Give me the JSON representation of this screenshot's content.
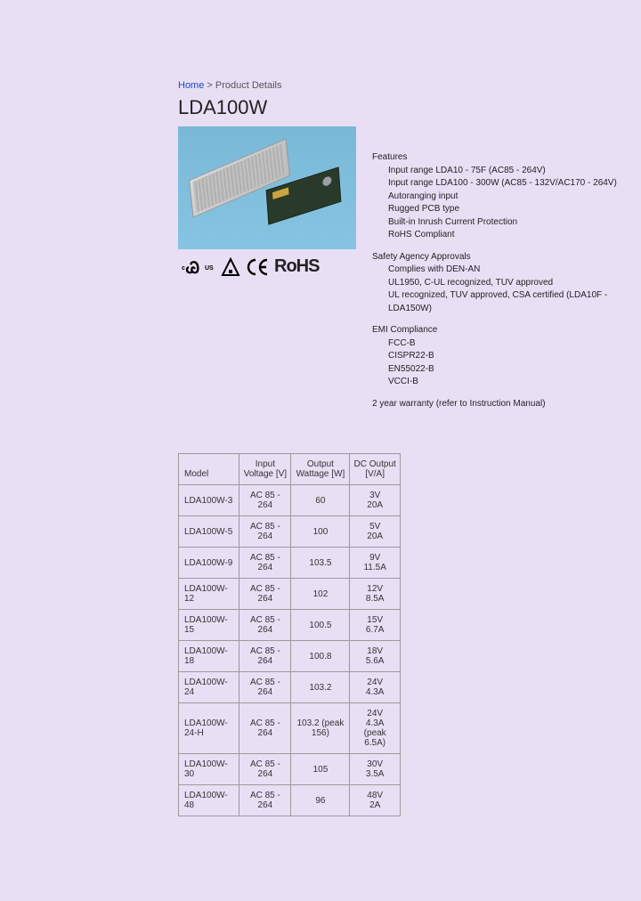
{
  "breadcrumb": {
    "home": "Home",
    "current": "Product Details"
  },
  "title": "LDA100W",
  "features_head": "Features",
  "features": [
    "Input range LDA10 - 75F (AC85 - 264V)",
    "Input range LDA100 - 300W (AC85 - 132V/AC170 - 264V)",
    "Autoranging input",
    "Rugged PCB type",
    "Built-in Inrush Current Protection",
    "RoHS Compliant"
  ],
  "safety_head": "Safety Agency Approvals",
  "safety": [
    "Complies with DEN-AN",
    "UL1950, C-UL recognized, TUV approved",
    "UL recognized, TUV approved, CSA certified (LDA10F - LDA150W)"
  ],
  "emi_head": "EMI Compliance",
  "emi": [
    "FCC-B",
    "CISPR22-B",
    "EN55022-B",
    "VCCI-B"
  ],
  "warranty": "2 year warranty (refer to Instruction Manual)",
  "rohs_label": "RoHS",
  "ce_label": "CE",
  "table": {
    "columns": [
      "Model",
      "Input Voltage [V]",
      "Output Wattage [W]",
      "DC Output [V/A]"
    ],
    "rows": [
      {
        "model": "LDA100W-3",
        "input": "AC 85 - 264",
        "watt": "60",
        "out1": "3V",
        "out2": "20A"
      },
      {
        "model": "LDA100W-5",
        "input": "AC 85 - 264",
        "watt": "100",
        "out1": "5V",
        "out2": "20A"
      },
      {
        "model": "LDA100W-9",
        "input": "AC 85 - 264",
        "watt": "103.5",
        "out1": "9V",
        "out2": "11.5A"
      },
      {
        "model": "LDA100W-12",
        "input": "AC 85 - 264",
        "watt": "102",
        "out1": "12V",
        "out2": "8.5A"
      },
      {
        "model": "LDA100W-15",
        "input": "AC 85 - 264",
        "watt": "100.5",
        "out1": "15V",
        "out2": "6.7A"
      },
      {
        "model": "LDA100W-18",
        "input": "AC 85 - 264",
        "watt": "100.8",
        "out1": "18V",
        "out2": "5.6A"
      },
      {
        "model": "LDA100W-24",
        "input": "AC 85 - 264",
        "watt": "103.2",
        "out1": "24V",
        "out2": "4.3A"
      },
      {
        "model": "LDA100W-24-H",
        "input": "AC 85 - 264",
        "watt": "103.2 (peak 156)",
        "out1": "24V",
        "out2": "4.3A (peak 6.5A)",
        "thick": true
      },
      {
        "model": "LDA100W-30",
        "input": "AC 85 - 264",
        "watt": "105",
        "out1": "30V",
        "out2": "3.5A",
        "thick": true
      },
      {
        "model": "LDA100W-48",
        "input": "AC 85 - 264",
        "watt": "96",
        "out1": "48V",
        "out2": "2A"
      }
    ]
  },
  "colors": {
    "page_bg": "#e8dff5",
    "link": "#1a4bcc",
    "img_bg": "#7ab8d8",
    "table_border": "#9a9a9a",
    "table_border_thick": "#808080"
  }
}
